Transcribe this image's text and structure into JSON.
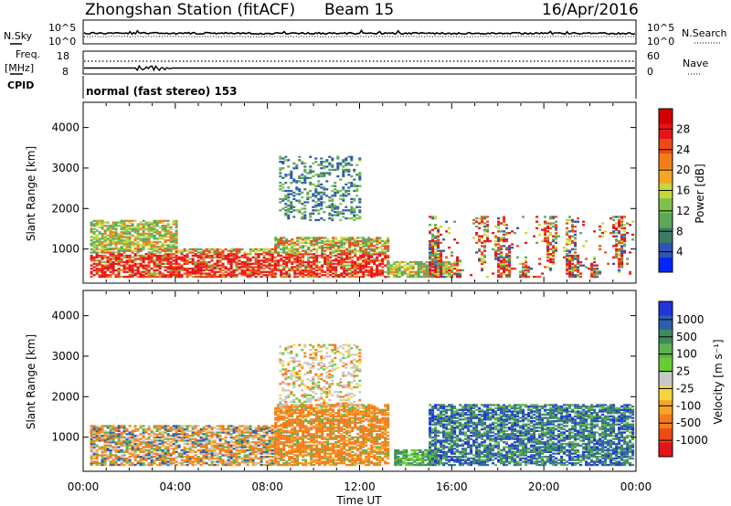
{
  "header": {
    "title": "Zhongshan Station (fitACF)",
    "beam": "Beam 15",
    "date": "16/Apr/2016"
  },
  "top_panels": {
    "nsky": {
      "label": "N.Sky",
      "ticks": [
        "10^5",
        "10^0"
      ],
      "right_label": "N.Search",
      "right_ticks": [
        "10^5",
        "10^0"
      ]
    },
    "freq": {
      "label_top": "Freq.",
      "label_unit": "[MHz]",
      "ticks": [
        "18",
        "8"
      ],
      "right_label": "Nave",
      "right_ticks": [
        "60",
        "0"
      ]
    },
    "cpid": {
      "label": "CPID",
      "mode_text": "normal (fast stereo) 153"
    }
  },
  "chart_data": [
    {
      "type": "heatmap",
      "name": "Power",
      "ylabel": "Slant Range [km]",
      "ylim": [
        180,
        4600
      ],
      "yticks": [
        1000,
        2000,
        3000,
        4000
      ],
      "xlim": [
        0,
        24
      ],
      "colorbar": {
        "label": "Power [dB]",
        "range": [
          0,
          32
        ],
        "tick_values": [
          4,
          8,
          12,
          16,
          20,
          24,
          28
        ],
        "tick_labels": [
          "4",
          "8",
          "12",
          "16",
          "20",
          "24",
          "28"
        ],
        "colors": [
          "#0026ff",
          "#2d55b5",
          "#3b7d63",
          "#5ba85a",
          "#7dc34b",
          "#c7d63a",
          "#f5a623",
          "#f57c1a",
          "#ee4a16",
          "#e6141a",
          "#d40000"
        ]
      },
      "regions": [
        {
          "t0": 0.3,
          "t1": 8.3,
          "r0": 300,
          "r1": 1000,
          "level": "high"
        },
        {
          "t0": 0.3,
          "t1": 4.0,
          "r0": 1000,
          "r1": 1700,
          "level": "mixed"
        },
        {
          "t0": 8.3,
          "t1": 13.2,
          "r0": 300,
          "r1": 1300,
          "level": "high"
        },
        {
          "t0": 8.5,
          "t1": 12.0,
          "r0": 1700,
          "r1": 3300,
          "level": "low"
        },
        {
          "t0": 13.2,
          "t1": 16.0,
          "r0": 300,
          "r1": 700,
          "level": "mid"
        },
        {
          "t0": 15.0,
          "t1": 23.9,
          "r0": 300,
          "r1": 1800,
          "level": "streaks"
        }
      ]
    },
    {
      "type": "heatmap",
      "name": "Velocity",
      "ylabel": "Slant Range [km]",
      "xlabel": "Time UT",
      "ylim": [
        180,
        4600
      ],
      "yticks": [
        1000,
        2000,
        3000,
        4000
      ],
      "xlim": [
        0,
        24
      ],
      "x_tick_labels": [
        "00:00",
        "04:00",
        "08:00",
        "12:00",
        "16:00",
        "20:00",
        "00:00"
      ],
      "colorbar": {
        "label": "Velocity [m s⁻¹]",
        "tick_labels": [
          "1000",
          "500",
          "100",
          "25",
          "-25",
          "-100",
          "-500",
          "-1000"
        ],
        "colors": [
          "#2135d8",
          "#2e5fae",
          "#3f8a5e",
          "#5fb34f",
          "#66cc33",
          "#c8c8c8",
          "#f5d63a",
          "#f5a623",
          "#f57c1a",
          "#ee4a16",
          "#e6141a"
        ]
      },
      "regions": [
        {
          "t0": 0.3,
          "t1": 8.3,
          "r0": 300,
          "r1": 1300,
          "level": "mixed"
        },
        {
          "t0": 8.3,
          "t1": 13.2,
          "r0": 300,
          "r1": 1800,
          "level": "orange"
        },
        {
          "t0": 8.5,
          "t1": 12.0,
          "r0": 1700,
          "r1": 3300,
          "level": "gray-orange"
        },
        {
          "t0": 13.5,
          "t1": 15.5,
          "r0": 300,
          "r1": 700,
          "level": "green"
        },
        {
          "t0": 15.0,
          "t1": 23.9,
          "r0": 300,
          "r1": 1800,
          "level": "green-blue"
        }
      ]
    }
  ]
}
